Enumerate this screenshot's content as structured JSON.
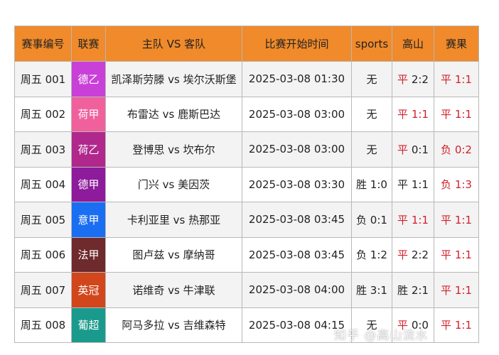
{
  "headers": [
    "赛事编号",
    "联赛",
    "主队 VS 客队",
    "比赛开始时间",
    "sports",
    "高山",
    "赛果"
  ],
  "colors": {
    "header": "#f08a2a",
    "red": "#d21f2a"
  },
  "rows": [
    {
      "id": "周五 001",
      "league": "德乙",
      "league_color": "#c940d9",
      "match": "凯泽斯劳滕 vs 埃尔沃斯堡",
      "time": "2025-03-08 01:30",
      "sports": "无",
      "gs_word": "平",
      "gs_score": "2:2",
      "gs_score_red": false,
      "res_word": "平",
      "res_score": "1:1"
    },
    {
      "id": "周五 002",
      "league": "荷甲",
      "league_color": "#f0609c",
      "match": "布雷达 vs 鹿斯巴达",
      "time": "2025-03-08 03:00",
      "sports": "无",
      "gs_word": "平",
      "gs_score": "1:1",
      "gs_score_red": true,
      "res_word": "平",
      "res_score": "1:1"
    },
    {
      "id": "周五 003",
      "league": "荷乙",
      "league_color": "#b0288c",
      "match": "登博思 vs 坎布尔",
      "time": "2025-03-08 03:00",
      "sports": "无",
      "gs_word": "平",
      "gs_score": "0:1",
      "gs_score_red": false,
      "res_word": "负",
      "res_score": "0:2"
    },
    {
      "id": "周五 004",
      "league": "德甲",
      "league_color": "#8e1a9c",
      "match": "门兴 vs 美因茨",
      "time": "2025-03-08 03:30",
      "sports": "胜 1:0",
      "gs_word": "平",
      "gs_score": "1:1",
      "gs_word_red": false,
      "gs_score_red": false,
      "res_word": "负",
      "res_score": "1:3"
    },
    {
      "id": "周五 005",
      "league": "意甲",
      "league_color": "#1a6ef2",
      "match": "卡利亚里 vs 热那亚",
      "time": "2025-03-08 03:45",
      "sports": "负 0:1",
      "gs_word": "平",
      "gs_score": "1:1",
      "gs_score_red": true,
      "res_word": "平",
      "res_score": "1:1"
    },
    {
      "id": "周五 006",
      "league": "法甲",
      "league_color": "#6e2a2c",
      "match": "图卢兹 vs 摩纳哥",
      "time": "2025-03-08 03:45",
      "sports": "负 1:2",
      "gs_word": "平",
      "gs_score": "2:2",
      "gs_score_red": false,
      "res_word": "平",
      "res_score": "1:1"
    },
    {
      "id": "周五 007",
      "league": "英冠",
      "league_color": "#d2461c",
      "match": "诺维奇 vs 牛津联",
      "time": "2025-03-08 04:00",
      "sports": "胜 3:1",
      "gs_word": "胜",
      "gs_score": "2:1",
      "gs_word_red": false,
      "gs_score_red": false,
      "res_word": "平",
      "res_score": "1:1"
    },
    {
      "id": "周五 008",
      "league": "葡超",
      "league_color": "#1a9a8c",
      "match": "阿马多拉 vs 吉维森特",
      "time": "2025-03-08 04:15",
      "sports": "无",
      "gs_word": "平",
      "gs_score": "0:0",
      "gs_score_red": false,
      "res_word": "平",
      "res_score": "1:1"
    }
  ],
  "watermark": "知乎 @高山流水"
}
